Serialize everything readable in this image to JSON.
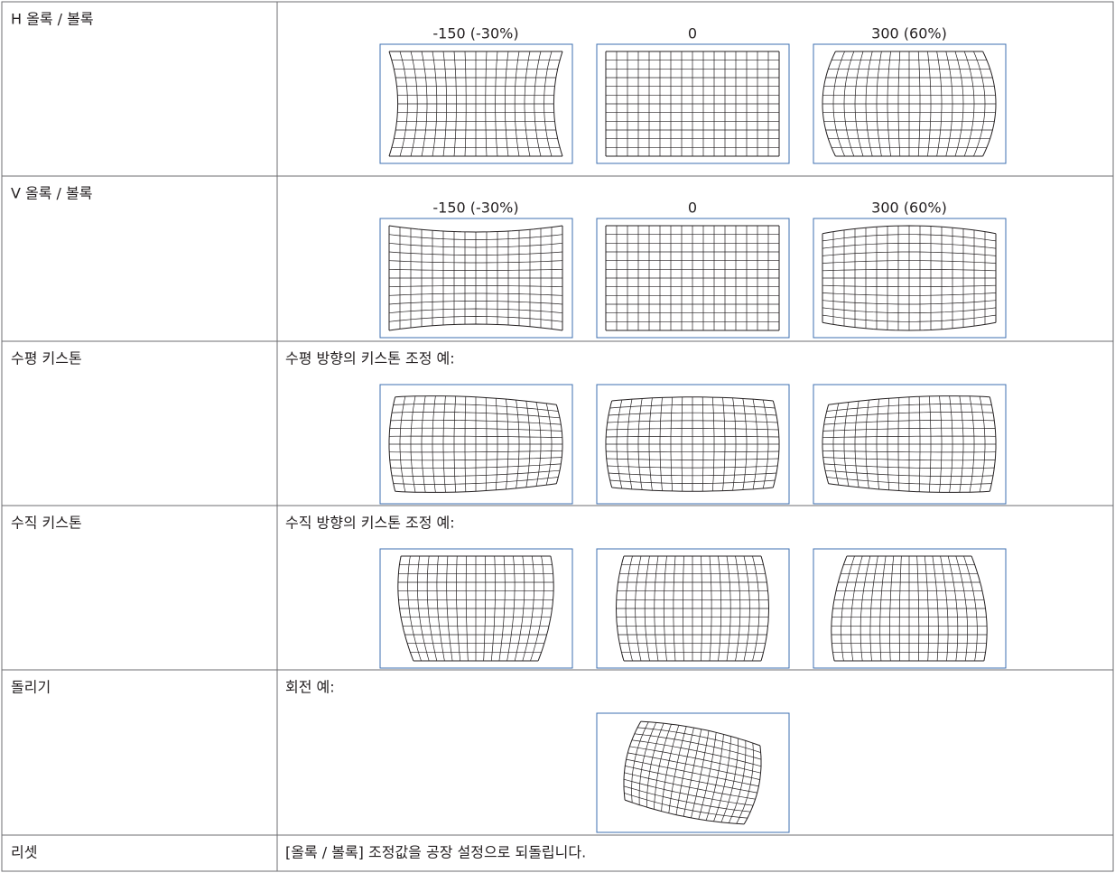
{
  "rows": [
    {
      "label": "H 올록 / 볼록",
      "captions": [
        "-150 (-30%)",
        "0",
        "300 (60%)"
      ]
    },
    {
      "label": "V 올록 / 볼록",
      "captions": [
        "-150 (-30%)",
        "0",
        "300 (60%)"
      ]
    },
    {
      "label": "수평 키스톤",
      "text": "수평 방향의 키스톤 조정 예:"
    },
    {
      "label": "수직 키스톤",
      "text": "수직 방향의 키스톤 조정 예:"
    },
    {
      "label": "돌리기",
      "text": "회전 예:"
    },
    {
      "label": "리셋",
      "text": "[올록 / 볼록] 조정값을 공장 설정으로 되돌립니다."
    }
  ]
}
